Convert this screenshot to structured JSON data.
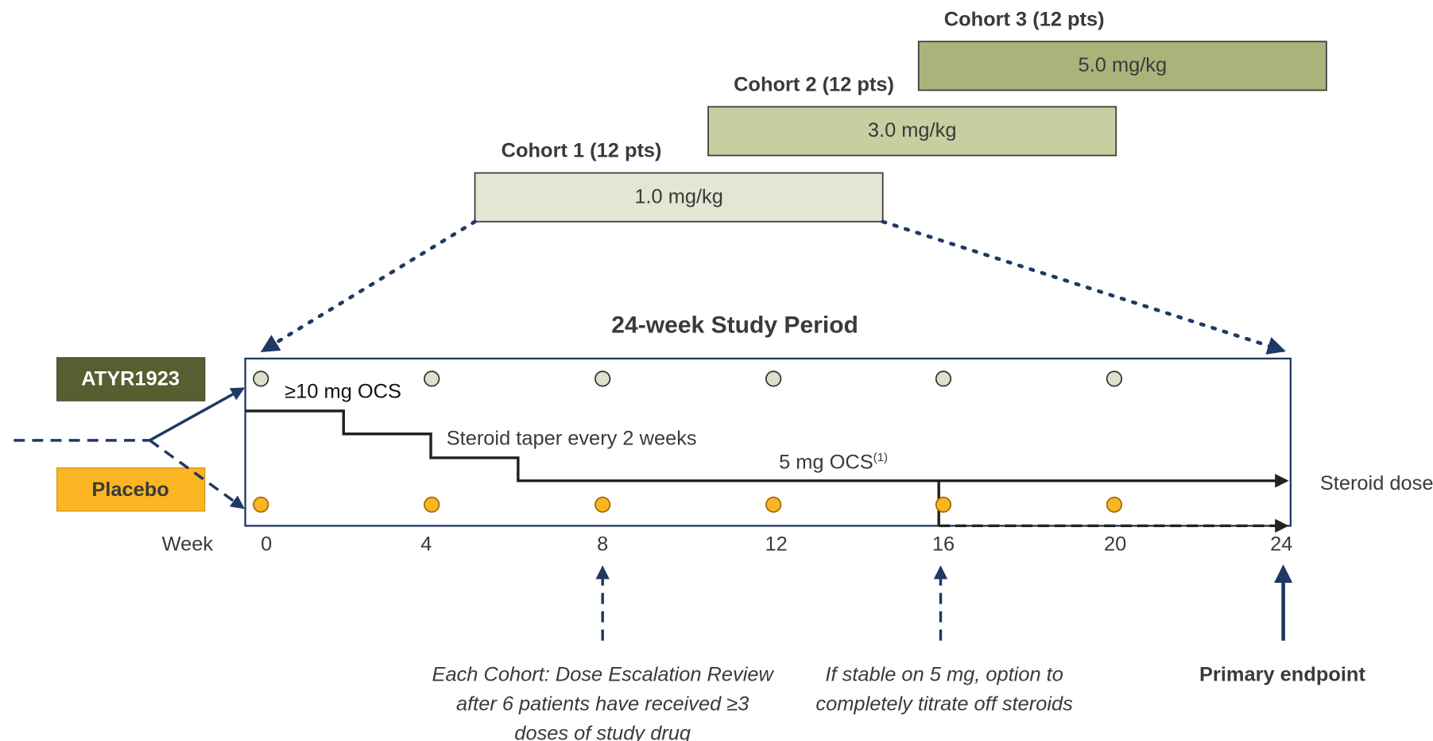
{
  "cohorts": [
    {
      "label": "Cohort 1 (12 pts)",
      "dose": "1.0 mg/kg"
    },
    {
      "label": "Cohort 2 (12 pts)",
      "dose": "3.0 mg/kg"
    },
    {
      "label": "Cohort 3 (12 pts)",
      "dose": "5.0 mg/kg"
    }
  ],
  "study_period": "24-week Study Period",
  "arms": {
    "active": "ATYR1923",
    "placebo": "Placebo"
  },
  "steroid": {
    "start": "≥10 mg OCS",
    "taper": "Steroid taper every 2 weeks",
    "maintenance": "5 mg OCS",
    "footnote": "(1)",
    "axis": "Steroid dose"
  },
  "weeks": {
    "label": "Week",
    "ticks": [
      "0",
      "4",
      "8",
      "12",
      "16",
      "20",
      "24"
    ]
  },
  "annotations": [
    {
      "lines": [
        "Each Cohort: Dose Escalation Review",
        "after 6 patients have received ≥3",
        "doses of study drug"
      ]
    },
    {
      "lines": [
        "If stable on 5 mg, option to",
        "completely titrate off steroids"
      ]
    },
    {
      "lines": [
        "Primary endpoint"
      ]
    }
  ]
}
